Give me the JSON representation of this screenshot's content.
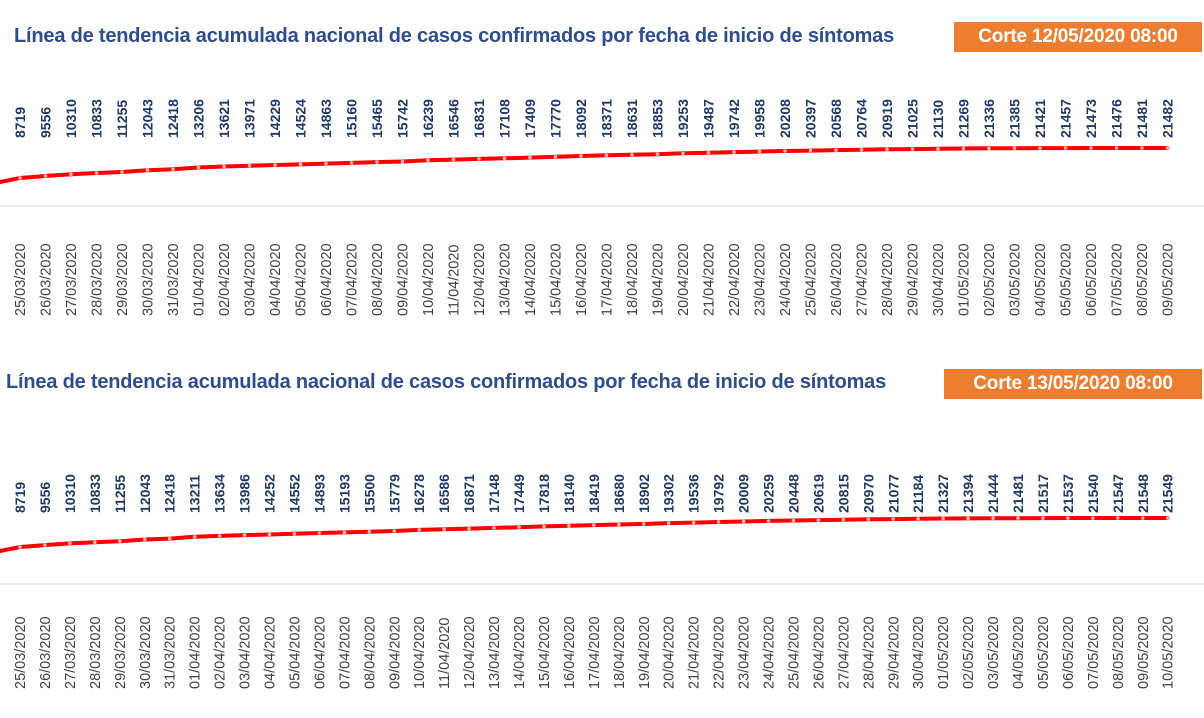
{
  "chart_data": [
    {
      "type": "line",
      "title": "Línea de tendencia acumulada nacional de casos confirmados por fecha de inicio de síntomas",
      "badge": "Corte 12/05/2020 08:00",
      "categories": [
        "25/03/2020",
        "26/03/2020",
        "27/03/2020",
        "28/03/2020",
        "29/03/2020",
        "30/03/2020",
        "31/03/2020",
        "01/04/2020",
        "02/04/2020",
        "03/04/2020",
        "04/04/2020",
        "05/04/2020",
        "06/04/2020",
        "07/04/2020",
        "08/04/2020",
        "09/04/2020",
        "10/04/2020",
        "11/04/2020",
        "12/04/2020",
        "13/04/2020",
        "14/04/2020",
        "15/04/2020",
        "16/04/2020",
        "17/04/2020",
        "18/04/2020",
        "19/04/2020",
        "20/04/2020",
        "21/04/2020",
        "22/04/2020",
        "23/04/2020",
        "24/04/2020",
        "25/04/2020",
        "26/04/2020",
        "27/04/2020",
        "28/04/2020",
        "29/04/2020",
        "30/04/2020",
        "01/05/2020",
        "02/05/2020",
        "03/05/2020",
        "04/05/2020",
        "05/05/2020",
        "06/05/2020",
        "07/05/2020",
        "08/05/2020",
        "09/05/2020"
      ],
      "series": [
        {
          "color": "#ff0000",
          "values": [
            8719,
            9556,
            10310,
            10833,
            11255,
            12043,
            12418,
            13206,
            13621,
            13971,
            14229,
            14524,
            14863,
            15160,
            15465,
            15742,
            16239,
            16546,
            16831,
            17108,
            17409,
            17770,
            18092,
            18371,
            18631,
            18853,
            19253,
            19487,
            19742,
            19958,
            20208,
            20397,
            20568,
            20764,
            20919,
            21025,
            21130,
            21269,
            21336,
            21385,
            21421,
            21457,
            21473,
            21476,
            21481,
            21482
          ]
        }
      ],
      "xlabel": "",
      "ylabel": "",
      "grid": false,
      "legend": "none"
    },
    {
      "type": "line",
      "title": "Línea de tendencia acumulada nacional de casos confirmados por fecha de inicio de síntomas",
      "badge": "Corte 13/05/2020 08:00",
      "categories": [
        "25/03/2020",
        "26/03/2020",
        "27/03/2020",
        "28/03/2020",
        "29/03/2020",
        "30/03/2020",
        "31/03/2020",
        "01/04/2020",
        "02/04/2020",
        "03/04/2020",
        "04/04/2020",
        "05/04/2020",
        "06/04/2020",
        "07/04/2020",
        "08/04/2020",
        "09/04/2020",
        "10/04/2020",
        "11/04/2020",
        "12/04/2020",
        "13/04/2020",
        "14/04/2020",
        "15/04/2020",
        "16/04/2020",
        "17/04/2020",
        "18/04/2020",
        "19/04/2020",
        "20/04/2020",
        "21/04/2020",
        "22/04/2020",
        "23/04/2020",
        "24/04/2020",
        "25/04/2020",
        "26/04/2020",
        "27/04/2020",
        "28/04/2020",
        "29/04/2020",
        "30/04/2020",
        "01/05/2020",
        "02/05/2020",
        "03/05/2020",
        "04/05/2020",
        "05/05/2020",
        "06/05/2020",
        "07/05/2020",
        "08/05/2020",
        "09/05/2020",
        "10/05/2020"
      ],
      "series": [
        {
          "color": "#ff0000",
          "values": [
            8719,
            9556,
            10310,
            10833,
            11255,
            12043,
            12418,
            13211,
            13634,
            13986,
            14252,
            14552,
            14893,
            15193,
            15500,
            15779,
            16278,
            16586,
            16871,
            17148,
            17449,
            17818,
            18140,
            18419,
            18680,
            18902,
            19302,
            19536,
            19792,
            20009,
            20259,
            20448,
            20619,
            20815,
            20970,
            21077,
            21184,
            21327,
            21394,
            21444,
            21481,
            21517,
            21537,
            21540,
            21547,
            21548,
            21549
          ]
        }
      ],
      "xlabel": "",
      "ylabel": "",
      "grid": false,
      "legend": "none"
    }
  ],
  "colors": {
    "title": "#2f4d8a",
    "badge_bg": "#ed7d31",
    "badge_text": "#ffffff",
    "value_label": "#1f3864",
    "line": "#ff0000"
  }
}
